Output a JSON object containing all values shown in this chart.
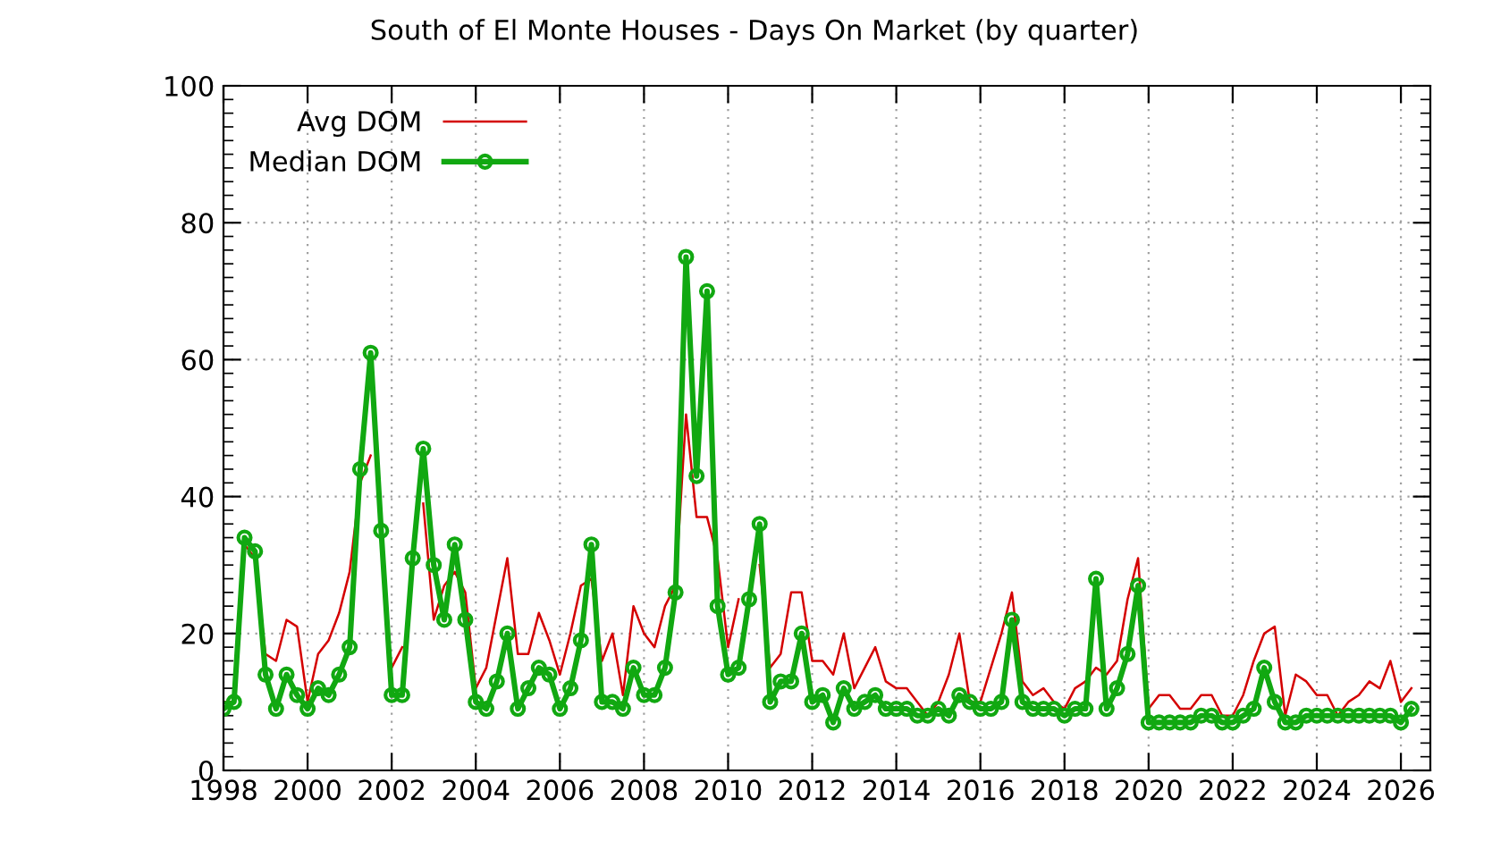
{
  "chart_data": {
    "type": "line",
    "title": "South of El Monte Houses - Days On Market (by quarter)",
    "x": [
      1998.0,
      1998.25,
      1998.5,
      1998.75,
      1999.0,
      1999.25,
      1999.5,
      1999.75,
      2000.0,
      2000.25,
      2000.5,
      2000.75,
      2001.0,
      2001.25,
      2001.5,
      2001.75,
      2002.0,
      2002.25,
      2002.5,
      2002.75,
      2003.0,
      2003.25,
      2003.5,
      2003.75,
      2004.0,
      2004.25,
      2004.5,
      2004.75,
      2005.0,
      2005.25,
      2005.5,
      2005.75,
      2006.0,
      2006.25,
      2006.5,
      2006.75,
      2007.0,
      2007.25,
      2007.5,
      2007.75,
      2008.0,
      2008.25,
      2008.5,
      2008.75,
      2009.0,
      2009.25,
      2009.5,
      2009.75,
      2010.0,
      2010.25,
      2010.5,
      2010.75,
      2011.0,
      2011.25,
      2011.5,
      2011.75,
      2012.0,
      2012.25,
      2012.5,
      2012.75,
      2013.0,
      2013.25,
      2013.5,
      2013.75,
      2014.0,
      2014.25,
      2014.5,
      2014.75,
      2015.0,
      2015.25,
      2015.5,
      2015.75,
      2016.0,
      2016.25,
      2016.5,
      2016.75,
      2017.0,
      2017.25,
      2017.5,
      2017.75,
      2018.0,
      2018.25,
      2018.5,
      2018.75,
      2019.0,
      2019.25,
      2019.5,
      2019.75,
      2020.0,
      2020.25,
      2020.5,
      2020.75,
      2021.0,
      2021.25,
      2021.5,
      2021.75,
      2022.0,
      2022.25,
      2022.5,
      2022.75,
      2023.0,
      2023.25,
      2023.5,
      2023.75,
      2024.0,
      2024.25,
      2024.5,
      2024.75,
      2025.0,
      2025.25,
      2025.5,
      2025.75,
      2026.0,
      2026.25
    ],
    "series": [
      {
        "name": "Avg DOM",
        "color": "#d40000",
        "marker": "none",
        "values": [
          10,
          10,
          33,
          31,
          17,
          16,
          22,
          21,
          10,
          17,
          19,
          23,
          29,
          42,
          46,
          null,
          15,
          18,
          null,
          39,
          22,
          27,
          29,
          26,
          12,
          15,
          23,
          31,
          17,
          17,
          23,
          19,
          14,
          20,
          27,
          28,
          16,
          20,
          11,
          24,
          20,
          18,
          24,
          27,
          52,
          37,
          37,
          31,
          18,
          25,
          null,
          30,
          15,
          17,
          26,
          26,
          16,
          16,
          14,
          20,
          12,
          15,
          18,
          13,
          12,
          12,
          10,
          8,
          10,
          14,
          20,
          10,
          10,
          15,
          20,
          26,
          13,
          11,
          12,
          10,
          9,
          12,
          13,
          15,
          14,
          16,
          25,
          31,
          9,
          11,
          11,
          9,
          9,
          11,
          11,
          8,
          8,
          11,
          16,
          20,
          21,
          8,
          14,
          13,
          11,
          11,
          8,
          10,
          11,
          13,
          12,
          16,
          10,
          12
        ]
      },
      {
        "name": "Median DOM",
        "color": "#11a811",
        "marker": "circle",
        "values": [
          9,
          10,
          34,
          32,
          14,
          9,
          14,
          11,
          9,
          12,
          11,
          14,
          18,
          44,
          61,
          35,
          11,
          11,
          31,
          47,
          30,
          22,
          33,
          22,
          10,
          9,
          13,
          20,
          9,
          12,
          15,
          14,
          9,
          12,
          19,
          33,
          10,
          10,
          9,
          15,
          11,
          11,
          15,
          26,
          75,
          43,
          70,
          24,
          14,
          15,
          25,
          36,
          10,
          13,
          13,
          20,
          10,
          11,
          7,
          12,
          9,
          10,
          11,
          9,
          9,
          9,
          8,
          8,
          9,
          8,
          11,
          10,
          9,
          9,
          10,
          22,
          10,
          9,
          9,
          9,
          8,
          9,
          9,
          28,
          9,
          12,
          17,
          27,
          7,
          7,
          7,
          7,
          7,
          8,
          8,
          7,
          7,
          8,
          9,
          15,
          10,
          7,
          7,
          8,
          8,
          8,
          8,
          8,
          8,
          8,
          8,
          8,
          7,
          9
        ]
      }
    ],
    "xlim": [
      1998,
      2026.7
    ],
    "xticks": [
      1998,
      2000,
      2002,
      2004,
      2006,
      2008,
      2010,
      2012,
      2014,
      2016,
      2018,
      2020,
      2022,
      2024,
      2026
    ],
    "ylim": [
      0,
      100
    ],
    "yticks": [
      0,
      20,
      40,
      60,
      80,
      100
    ],
    "grid": true,
    "legend": "top left"
  }
}
